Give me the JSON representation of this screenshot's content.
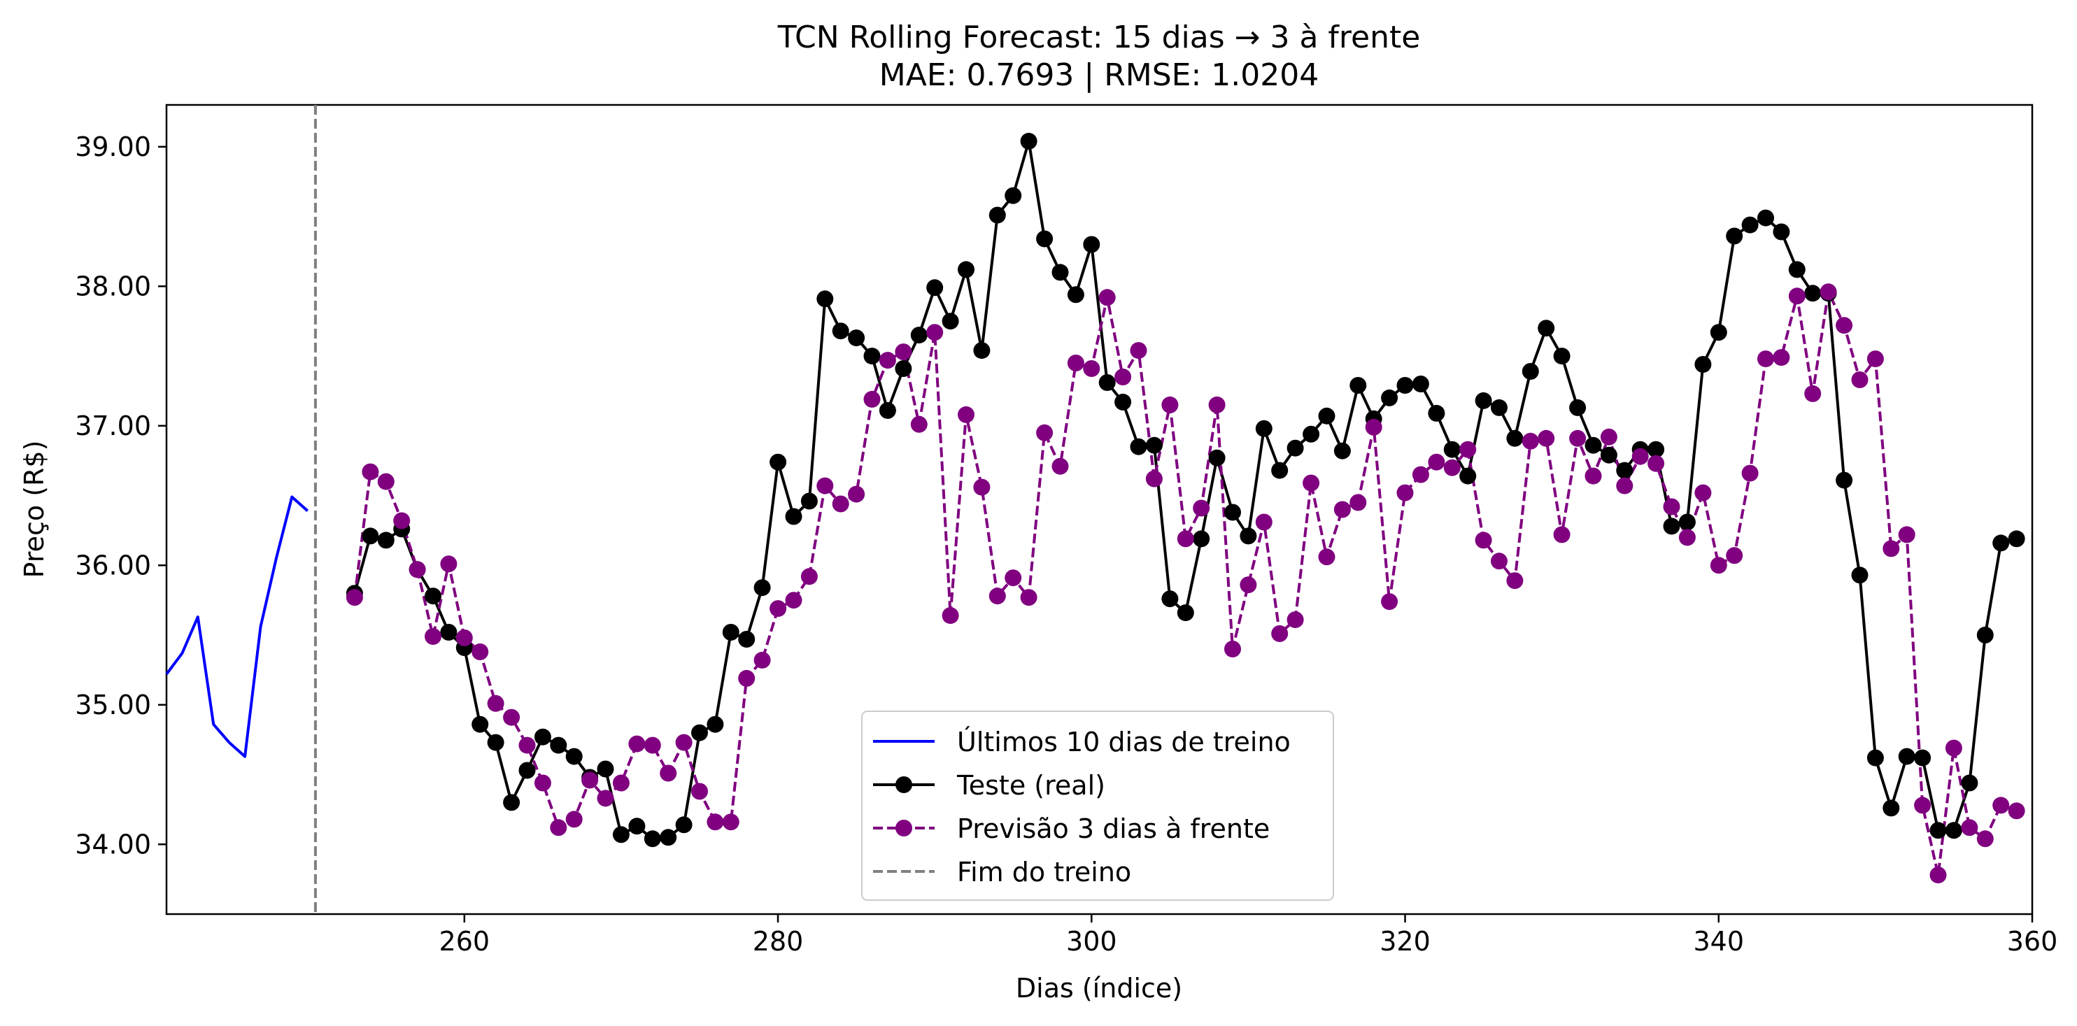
{
  "chart_data": {
    "type": "line",
    "title": "TCN Rolling Forecast: 15 dias → 3 à frente",
    "subtitle": "MAE: 0.7693 | RMSE: 1.0204",
    "xlabel": "Dias (índice)",
    "ylabel": "Preço (R$)",
    "xlim": [
      241,
      360
    ],
    "ylim": [
      33.5,
      39.3
    ],
    "xticks": [
      260,
      280,
      300,
      320,
      340,
      360
    ],
    "yticks": [
      34.0,
      35.0,
      36.0,
      37.0,
      38.0,
      39.0
    ],
    "ytick_labels": [
      "34.00",
      "35.00",
      "36.00",
      "37.00",
      "38.00",
      "39.00"
    ],
    "legend_position": "lower-center",
    "vline": {
      "name": "Fim do treino",
      "x": 250.5,
      "color": "#808080"
    },
    "series": [
      {
        "name": "Últimos 10 dias de treino",
        "color": "#0000ff",
        "style": "solid",
        "marker": false,
        "x": [
          241,
          242,
          243,
          244,
          245,
          246,
          247,
          248,
          249,
          250
        ],
        "values": [
          35.22,
          35.37,
          35.63,
          34.86,
          34.73,
          34.63,
          35.56,
          36.05,
          36.49,
          36.39
        ]
      },
      {
        "name": "Teste (real)",
        "color": "#000000",
        "style": "solid",
        "marker": true,
        "x": [
          253,
          254,
          255,
          256,
          257,
          258,
          259,
          260,
          261,
          262,
          263,
          264,
          265,
          266,
          267,
          268,
          269,
          270,
          271,
          272,
          273,
          274,
          275,
          276,
          277,
          278,
          279,
          280,
          281,
          282,
          283,
          284,
          285,
          286,
          287,
          288,
          289,
          290,
          291,
          292,
          293,
          294,
          295,
          296,
          297,
          298,
          299,
          300,
          301,
          302,
          303,
          304,
          305,
          306,
          307,
          308,
          309,
          310,
          311,
          312,
          313,
          314,
          315,
          316,
          317,
          318,
          319,
          320,
          321,
          322,
          323,
          324,
          325,
          326,
          327,
          328,
          329,
          330,
          331,
          332,
          333,
          334,
          335,
          336,
          337,
          338,
          339,
          340,
          341,
          342,
          343,
          344,
          345,
          346,
          347,
          348,
          349,
          350,
          351,
          352,
          353,
          354,
          355,
          356,
          357,
          358,
          359
        ],
        "values": [
          35.8,
          36.21,
          36.18,
          36.26,
          35.97,
          35.78,
          35.52,
          35.41,
          34.86,
          34.73,
          34.3,
          34.53,
          34.77,
          34.71,
          34.63,
          34.48,
          34.54,
          34.07,
          34.13,
          34.04,
          34.05,
          34.14,
          34.8,
          34.86,
          35.52,
          35.47,
          35.84,
          36.74,
          36.35,
          36.46,
          37.91,
          37.68,
          37.63,
          37.5,
          37.11,
          37.41,
          37.65,
          37.99,
          37.75,
          38.12,
          37.54,
          38.51,
          38.65,
          39.04,
          38.34,
          38.1,
          37.94,
          38.3,
          37.31,
          37.17,
          36.85,
          36.86,
          35.76,
          35.66,
          36.19,
          36.77,
          36.38,
          36.21,
          36.98,
          36.68,
          36.84,
          36.94,
          37.07,
          36.82,
          37.29,
          37.05,
          37.2,
          37.29,
          37.3,
          37.09,
          36.83,
          36.64,
          37.18,
          37.13,
          36.91,
          37.39,
          37.7,
          37.5,
          37.13,
          36.86,
          36.79,
          36.68,
          36.83,
          36.83,
          36.28,
          36.31,
          37.44,
          37.67,
          38.36,
          38.44,
          38.49,
          38.39,
          38.12,
          37.95,
          37.95,
          36.61,
          35.93,
          34.62,
          34.26,
          34.63,
          34.62,
          34.1,
          34.1,
          34.44,
          35.5,
          36.16,
          36.19
        ]
      },
      {
        "name": "Previsão 3 dias à frente",
        "color": "#800080",
        "style": "dashed",
        "marker": true,
        "x": [
          253,
          254,
          255,
          256,
          257,
          258,
          259,
          260,
          261,
          262,
          263,
          264,
          265,
          266,
          267,
          268,
          269,
          270,
          271,
          272,
          273,
          274,
          275,
          276,
          277,
          278,
          279,
          280,
          281,
          282,
          283,
          284,
          285,
          286,
          287,
          288,
          289,
          290,
          291,
          292,
          293,
          294,
          295,
          296,
          297,
          298,
          299,
          300,
          301,
          302,
          303,
          304,
          305,
          306,
          307,
          308,
          309,
          310,
          311,
          312,
          313,
          314,
          315,
          316,
          317,
          318,
          319,
          320,
          321,
          322,
          323,
          324,
          325,
          326,
          327,
          328,
          329,
          330,
          331,
          332,
          333,
          334,
          335,
          336,
          337,
          338,
          339,
          340,
          341,
          342,
          343,
          344,
          345,
          346,
          347,
          348,
          349,
          350,
          351,
          352,
          353,
          354,
          355,
          356,
          357,
          358,
          359
        ],
        "values": [
          35.77,
          36.67,
          36.6,
          36.32,
          35.97,
          35.49,
          36.01,
          35.48,
          35.38,
          35.01,
          34.91,
          34.71,
          34.44,
          34.12,
          34.18,
          34.46,
          34.33,
          34.44,
          34.72,
          34.71,
          34.51,
          34.73,
          34.38,
          34.16,
          34.16,
          35.19,
          35.32,
          35.69,
          35.75,
          35.92,
          36.57,
          36.44,
          36.51,
          37.19,
          37.47,
          37.53,
          37.01,
          37.67,
          35.64,
          37.08,
          36.56,
          35.78,
          35.91,
          35.77,
          36.95,
          36.71,
          37.45,
          37.41,
          37.92,
          37.35,
          37.54,
          36.62,
          37.15,
          36.19,
          36.41,
          37.15,
          35.4,
          35.86,
          36.31,
          35.51,
          35.61,
          36.59,
          36.06,
          36.4,
          36.45,
          36.99,
          35.74,
          36.52,
          36.65,
          36.74,
          36.7,
          36.83,
          36.18,
          36.03,
          35.89,
          36.89,
          36.91,
          36.22,
          36.91,
          36.64,
          36.92,
          36.57,
          36.78,
          36.73,
          36.42,
          36.2,
          36.52,
          36.0,
          36.07,
          36.66,
          37.48,
          37.49,
          37.93,
          37.23,
          37.96,
          37.72,
          37.33,
          37.48,
          36.12,
          36.22,
          34.28,
          33.78,
          34.69,
          34.12,
          34.04,
          34.28,
          34.24
        ]
      }
    ]
  }
}
